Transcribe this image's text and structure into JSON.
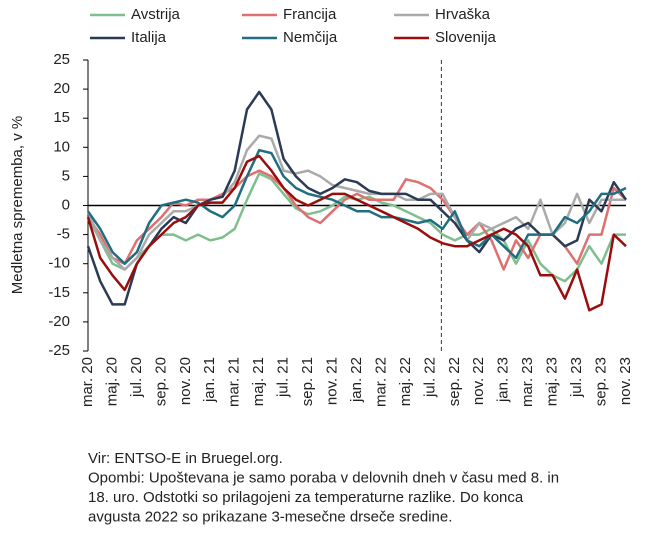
{
  "chart_data": {
    "type": "line",
    "y_label": "Medletna sprememba, v %",
    "categories": [
      "mar. 20",
      null,
      "maj. 20",
      null,
      "jul. 20",
      null,
      "sep. 20",
      null,
      "nov. 20",
      null,
      "jan. 21",
      null,
      "mar. 21",
      null,
      "maj. 21",
      null,
      "jul. 21",
      null,
      "sep. 21",
      null,
      "nov. 21",
      null,
      "jan. 22",
      null,
      "mar. 22",
      null,
      "maj. 22",
      null,
      "jul. 22",
      null,
      "sep. 22",
      null,
      "nov. 22",
      null,
      "jan. 23",
      null,
      "mar. 23",
      null,
      "maj. 23",
      null,
      "jul. 23",
      null,
      "sep. 23",
      null,
      "nov. 23"
    ],
    "series": [
      {
        "name": "Avstrija",
        "color": "#7fbf8f",
        "values": [
          -2,
          -6,
          -10,
          -11,
          -9,
          -7,
          -5,
          -5,
          -6,
          -5,
          -6,
          -5.5,
          -4,
          1,
          5.5,
          4.5,
          2,
          -0.5,
          -1.5,
          -1,
          0,
          1.5,
          1,
          1.5,
          0.5,
          0,
          -1,
          -2,
          -3,
          -5,
          -6,
          -5,
          -5,
          -4,
          -6,
          -10,
          -6,
          -10,
          -12,
          -13,
          -11,
          -7,
          -10,
          -5,
          -5
        ]
      },
      {
        "name": "Francija",
        "color": "#e07070",
        "values": [
          -2,
          -5,
          -9,
          -10,
          -6,
          -4,
          -2,
          0.5,
          0,
          1,
          1,
          2,
          3,
          5,
          6,
          5,
          3,
          0,
          -2,
          -3,
          -1,
          1,
          2,
          1,
          1,
          1,
          4.5,
          4,
          3,
          1,
          -2,
          -5,
          -3,
          -6,
          -11,
          -6,
          -9,
          -5,
          -5,
          -7,
          -10,
          -5,
          -5,
          3,
          1
        ]
      },
      {
        "name": "Hrvaška",
        "color": "#aaaaaa",
        "values": [
          -1,
          -6,
          -9,
          -11,
          -9,
          -5,
          -3,
          -1,
          -1,
          0,
          1,
          1.5,
          4,
          9.5,
          12,
          11.5,
          6,
          5.5,
          6,
          5,
          3.5,
          3,
          2.5,
          2,
          2,
          2,
          1,
          1,
          2,
          2,
          -2,
          -6,
          -3,
          -4,
          -3,
          -2,
          -4,
          1,
          -5,
          -3,
          2,
          -3,
          1,
          1,
          1
        ]
      },
      {
        "name": "Italija",
        "color": "#2b3a55",
        "values": [
          -7,
          -13,
          -17,
          -17,
          -10,
          -7,
          -4,
          -2,
          -3,
          0,
          1,
          1.5,
          6,
          16.5,
          19.5,
          16.5,
          8,
          5,
          3,
          2,
          3,
          4.5,
          4,
          2.5,
          2,
          2,
          2,
          1,
          1,
          -1,
          -3,
          -6,
          -8,
          -5,
          -6,
          -4,
          -3,
          -5,
          -5,
          -7,
          -6,
          1,
          -1,
          4,
          1
        ]
      },
      {
        "name": "Nemčija",
        "color": "#1f6f80",
        "values": [
          -1,
          -4,
          -8,
          -10,
          -8,
          -3,
          0,
          0.5,
          1,
          0.5,
          -1,
          -2,
          0,
          5,
          9.5,
          9,
          5,
          3,
          2,
          1.5,
          1,
          0,
          -1,
          -1,
          -2,
          -2,
          -2.5,
          -3,
          -2.5,
          -4,
          -1,
          -6,
          -7,
          -5,
          -7,
          -9,
          -5,
          -5,
          -5,
          -2,
          -3,
          -1,
          2,
          2,
          3
        ]
      },
      {
        "name": "Slovenija",
        "color": "#9b0d0d",
        "values": [
          -2,
          -9,
          -12,
          -14.5,
          -10,
          -7,
          -5,
          -3,
          -2,
          0,
          0.5,
          0.5,
          3,
          7.5,
          8.5,
          6,
          3,
          1,
          0,
          1,
          2,
          2,
          1,
          0,
          -1,
          -2,
          -3,
          -4,
          -5.5,
          -6.5,
          -7,
          -7,
          -6,
          -5,
          -4,
          -5,
          -7,
          -12,
          -12,
          -16,
          -11,
          -18,
          -17,
          -5,
          -7
        ]
      }
    ],
    "ylim": [
      -25,
      25
    ],
    "yticks": [
      -25,
      -20,
      -15,
      -10,
      -5,
      0,
      5,
      10,
      15,
      20,
      25
    ],
    "notes": [
      "Vir: ENTSO-E in Bruegel.org.",
      "Opombi: Upoštevana je samo poraba v delovnih dneh v času med 8. in",
      "18. uro. Odstotki so prilagojeni za temperaturne razlike. Do konca",
      "avgusta 2022 so prikazane 3-mesečne drseče sredine."
    ]
  }
}
